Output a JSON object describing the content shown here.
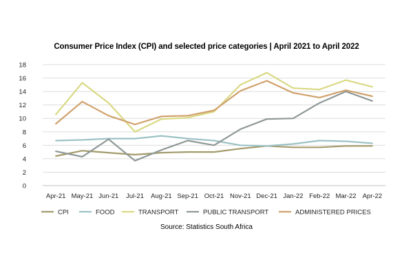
{
  "chart_data": {
    "type": "line",
    "title": "Consumer Price Index (CPI) and selected price categories | April 2021 to April 2022",
    "source": "Source: Statistics South Africa",
    "categories": [
      "Apr-21",
      "May-21",
      "Jun-21",
      "Jul-21",
      "Aug-21",
      "Sep-21",
      "Oct-21",
      "Nov-21",
      "Dec-21",
      "Jan-22",
      "Feb-22",
      "Mar-22",
      "Apr-22"
    ],
    "ylim": [
      0,
      18
    ],
    "yticks": [
      0,
      2,
      4,
      6,
      8,
      10,
      12,
      14,
      16,
      18
    ],
    "grid": true,
    "legend_position": "bottom",
    "series": [
      {
        "name": "CPI",
        "color": "#a39a6a",
        "values": [
          4.4,
          5.2,
          4.9,
          4.6,
          4.9,
          5.0,
          5.0,
          5.5,
          5.9,
          5.7,
          5.7,
          5.9,
          5.9
        ]
      },
      {
        "name": "FOOD",
        "color": "#9cc1c6",
        "values": [
          6.7,
          6.8,
          7.0,
          7.0,
          7.4,
          7.0,
          6.7,
          6.0,
          5.9,
          6.2,
          6.7,
          6.6,
          6.3
        ]
      },
      {
        "name": "TRANSPORT",
        "color": "#d9d883",
        "values": [
          10.6,
          15.3,
          12.3,
          8.0,
          9.9,
          10.1,
          11.0,
          15.0,
          16.8,
          14.5,
          14.3,
          15.7,
          14.7
        ]
      },
      {
        "name": "PUBLIC TRANSPORT",
        "color": "#8e9896",
        "values": [
          5.1,
          4.3,
          6.9,
          3.7,
          5.3,
          6.7,
          6.0,
          8.4,
          9.9,
          10.0,
          12.3,
          14.0,
          12.6
        ]
      },
      {
        "name": "ADMINISTERED PRICES",
        "color": "#d0a06a",
        "values": [
          9.2,
          12.5,
          10.4,
          9.1,
          10.3,
          10.4,
          11.2,
          14.1,
          15.6,
          13.8,
          13.1,
          14.2,
          13.3
        ]
      }
    ]
  }
}
